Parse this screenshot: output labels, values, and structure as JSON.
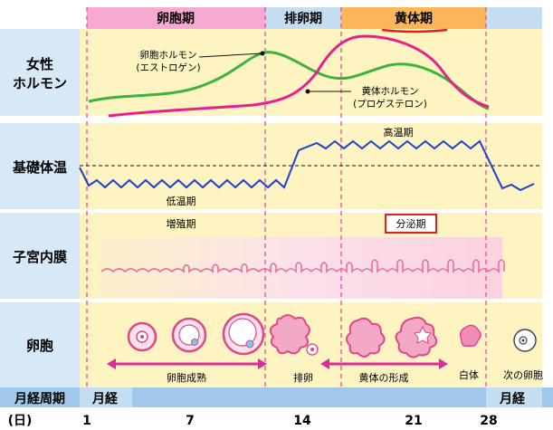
{
  "colors": {
    "label_bg": "#d7e8f7",
    "phase_pink": "#f6a9d3",
    "phase_orange": "#fbb65a",
    "phase_blue": "#c5ddf1",
    "panel_yellow": "#fdf4c2",
    "panel_pink": "#fbe1ea",
    "estrogen": "#3cb43c",
    "progesterone": "#e8208a",
    "temperature": "#1f3fd1",
    "endometrium": "#e46ea3",
    "follicle": "#e04788",
    "highlight_red": "#e02020",
    "bottom_bar": "#9fc8ea"
  },
  "phases": {
    "follicular": "卵胞期",
    "ovulation": "排卵期",
    "luteal": "黄体期"
  },
  "rows": {
    "hormone": "女性\nホルモン",
    "bbt": "基礎体温",
    "endometrium": "子宮内膜",
    "follicle": "卵胞"
  },
  "hormone": {
    "estrogen_label_1": "卵胞ホルモン",
    "estrogen_label_2": "(エストロゲン)",
    "progesterone_label_1": "黄体ホルモン",
    "progesterone_label_2": "(プロゲステロン)"
  },
  "bbt": {
    "high": "高温期",
    "low": "低温期"
  },
  "endometrium": {
    "proliferative": "増殖期",
    "secretory": "分泌期"
  },
  "follicle": {
    "maturation": "卵胞成熟",
    "ovulation": "排卵",
    "corpus_luteum_formation": "黄体の形成",
    "corpus_albicans": "白体",
    "next_follicle": "次の卵胞"
  },
  "cycle": {
    "label": "月経周期",
    "menses_start": "月経",
    "menses_next": "月経",
    "unit": "(日)",
    "days": [
      "1",
      "7",
      "14",
      "21",
      "28"
    ]
  }
}
